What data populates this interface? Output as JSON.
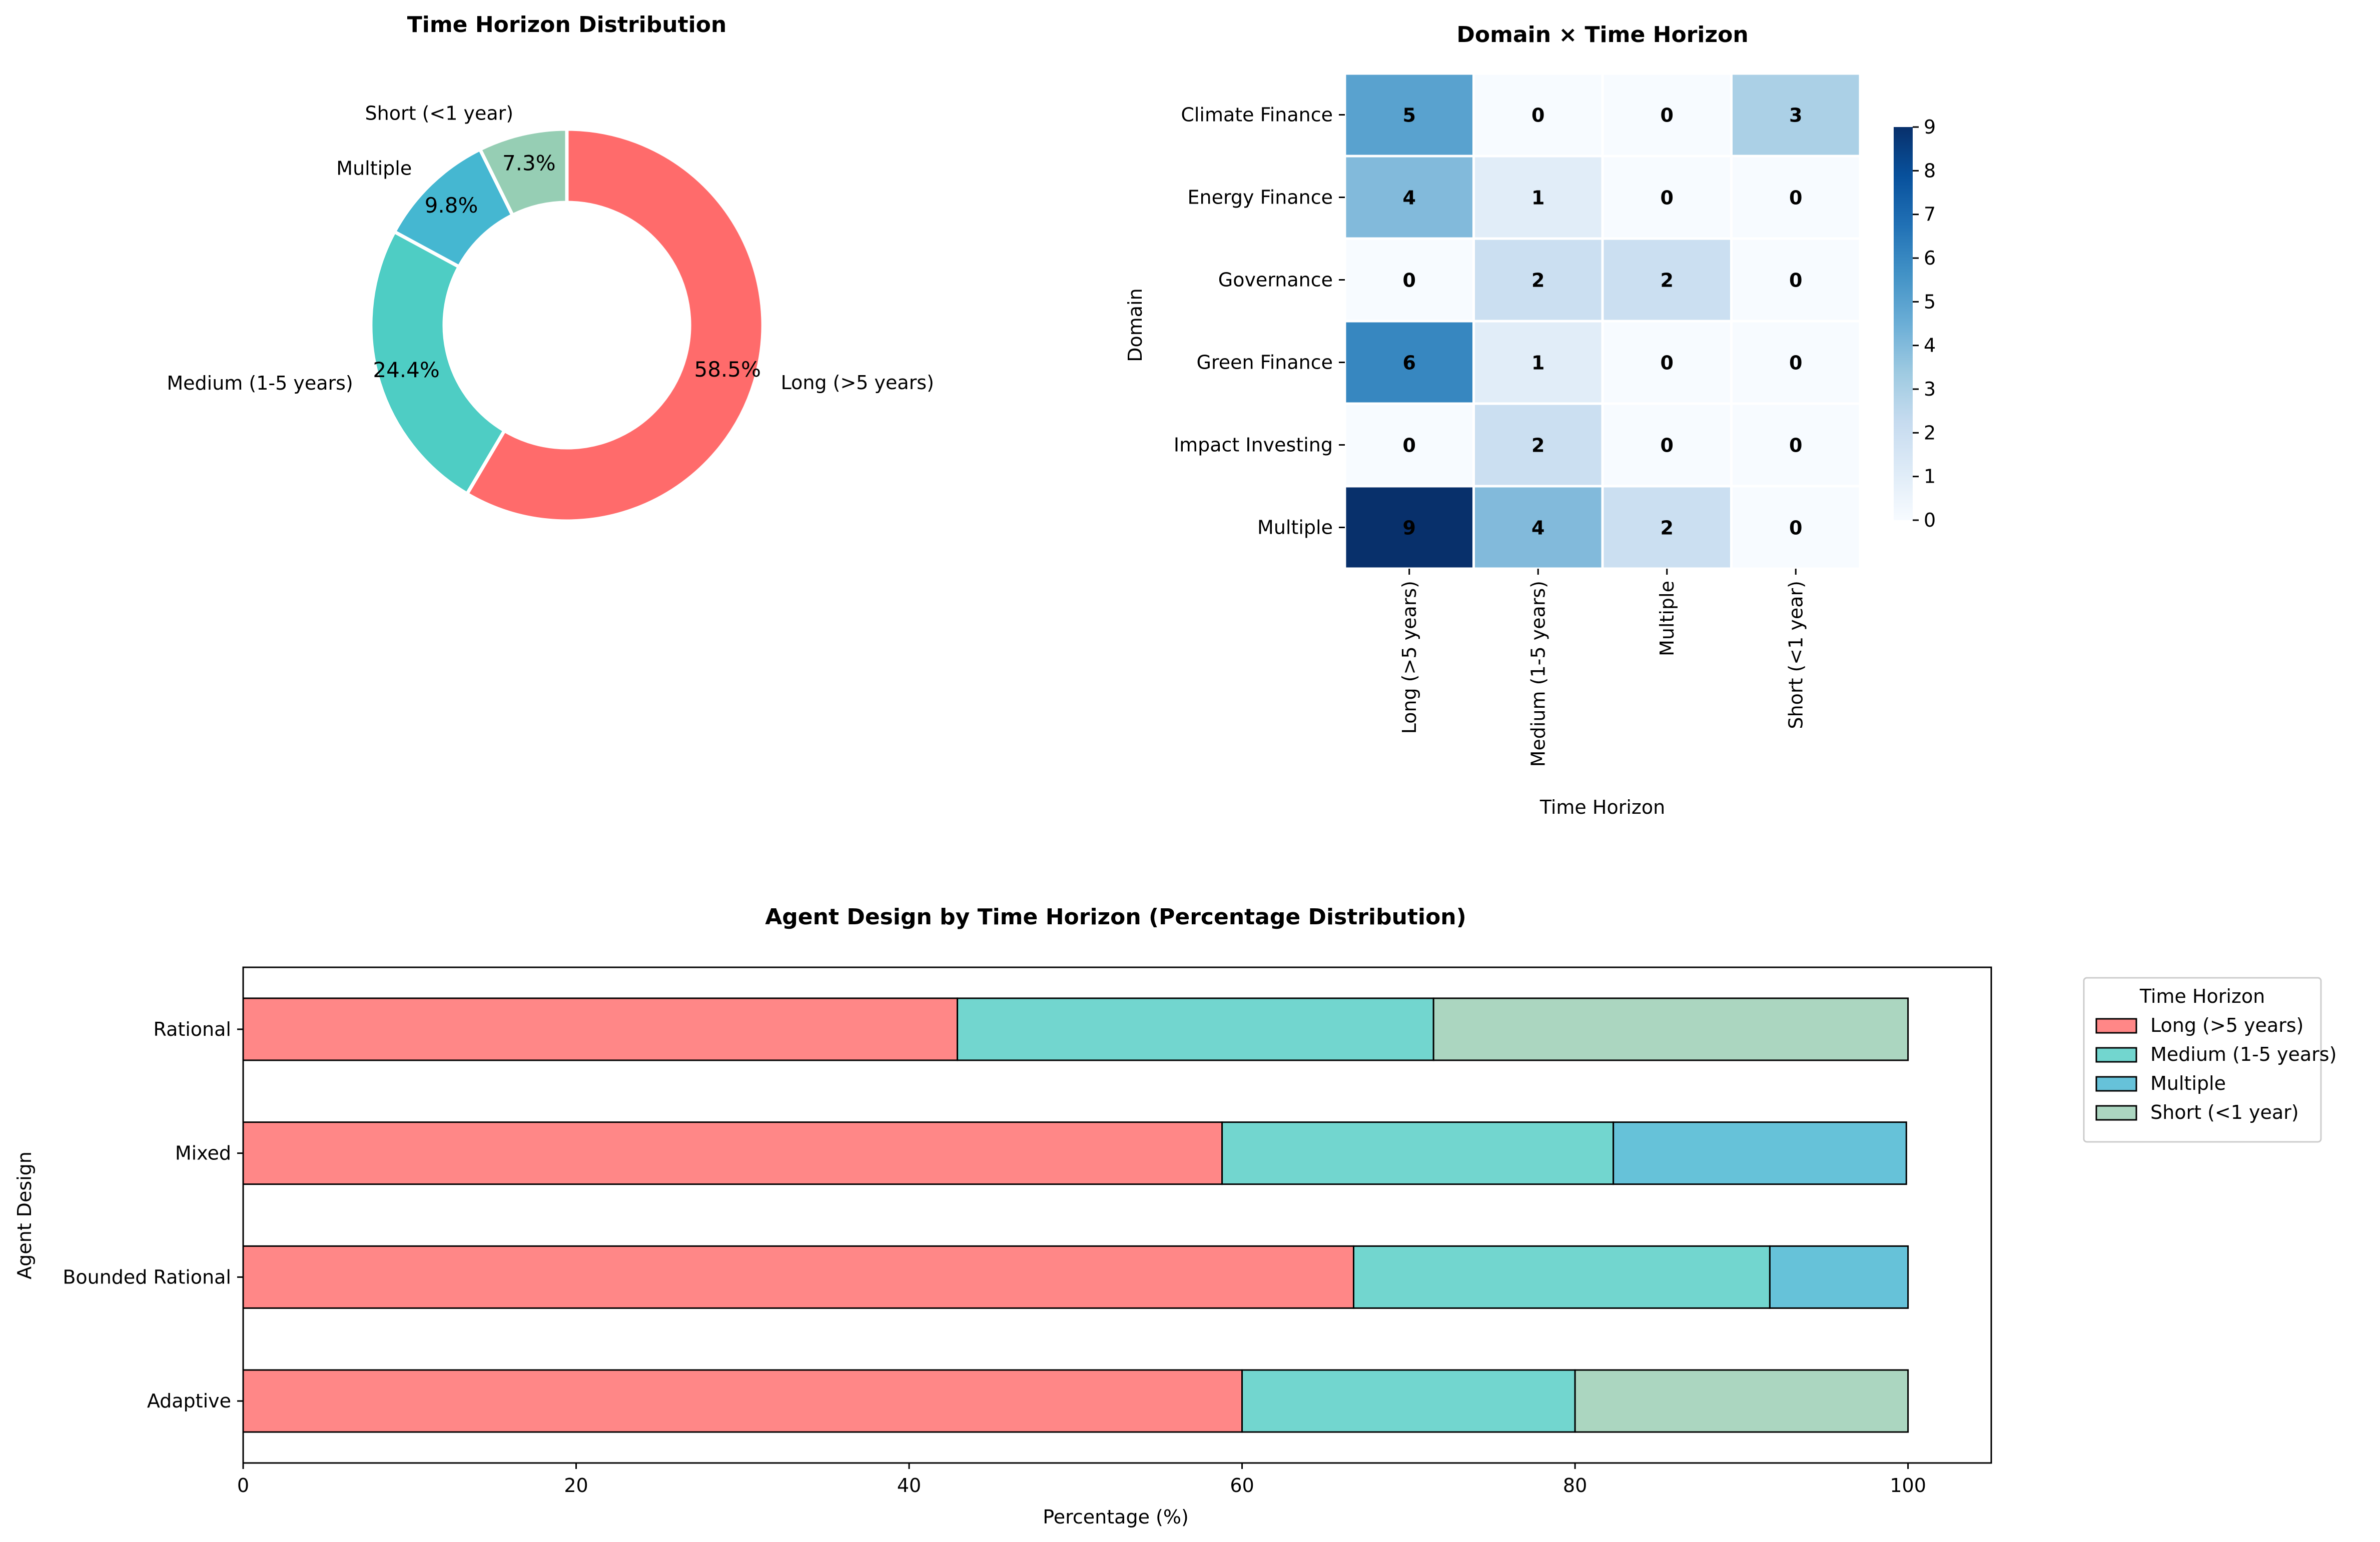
{
  "chart_data": [
    {
      "type": "pie",
      "variant": "donut",
      "title": "Time Horizon Distribution",
      "labels": [
        "Long (>5 years)",
        "Medium (1-5 years)",
        "Multiple",
        "Short (<1 year)"
      ],
      "values": [
        58.5,
        24.4,
        9.8,
        7.3
      ],
      "pct_labels": [
        "58.5%",
        "24.4%",
        "9.8%",
        "7.3%"
      ],
      "colors": [
        "#ff6b6b",
        "#4ecdc4",
        "#45b7d1",
        "#96ceb4"
      ]
    },
    {
      "type": "heatmap",
      "title": "Domain × Time Horizon",
      "xlabel": "Time Horizon",
      "ylabel": "Domain",
      "x_categories": [
        "Long (>5 years)",
        "Medium (1-5 years)",
        "Multiple",
        "Short (<1 year)"
      ],
      "y_categories": [
        "Climate Finance",
        "Energy Finance",
        "Governance",
        "Green Finance",
        "Impact Investing",
        "Multiple"
      ],
      "values": [
        [
          5,
          0,
          0,
          3
        ],
        [
          4,
          1,
          0,
          0
        ],
        [
          0,
          2,
          2,
          0
        ],
        [
          6,
          1,
          0,
          0
        ],
        [
          0,
          2,
          0,
          0
        ],
        [
          9,
          4,
          2,
          0
        ]
      ],
      "colorbar": {
        "range": [
          0,
          9
        ],
        "ticks": [
          "0",
          "1",
          "2",
          "3",
          "4",
          "5",
          "6",
          "7",
          "8",
          "9"
        ],
        "colormap": "Blues"
      }
    },
    {
      "type": "bar",
      "orientation": "horizontal",
      "stacked": true,
      "title": "Agent Design by Time Horizon (Percentage Distribution)",
      "xlabel": "Percentage (%)",
      "ylabel": "Agent Design",
      "categories": [
        "Rational",
        "Mixed",
        "Bounded Rational",
        "Adaptive"
      ],
      "series": [
        {
          "name": "Long (>5 years)",
          "color": "#ff8787",
          "values": [
            42.9,
            58.8,
            66.7,
            60.0
          ]
        },
        {
          "name": "Medium (1-5 years)",
          "color": "#72d6cf",
          "values": [
            28.6,
            23.5,
            25.0,
            20.0
          ]
        },
        {
          "name": "Multiple",
          "color": "#66c2d9",
          "values": [
            0,
            17.6,
            8.3,
            0
          ]
        },
        {
          "name": "Short (<1 year)",
          "color": "#abd6c0",
          "values": [
            28.5,
            0,
            0,
            20.0
          ]
        }
      ],
      "xlim": [
        0,
        105
      ],
      "xticks": [
        "0",
        "20",
        "40",
        "60",
        "80",
        "100"
      ],
      "legend": {
        "title": "Time Horizon",
        "placement": "outside-right-top"
      }
    }
  ]
}
